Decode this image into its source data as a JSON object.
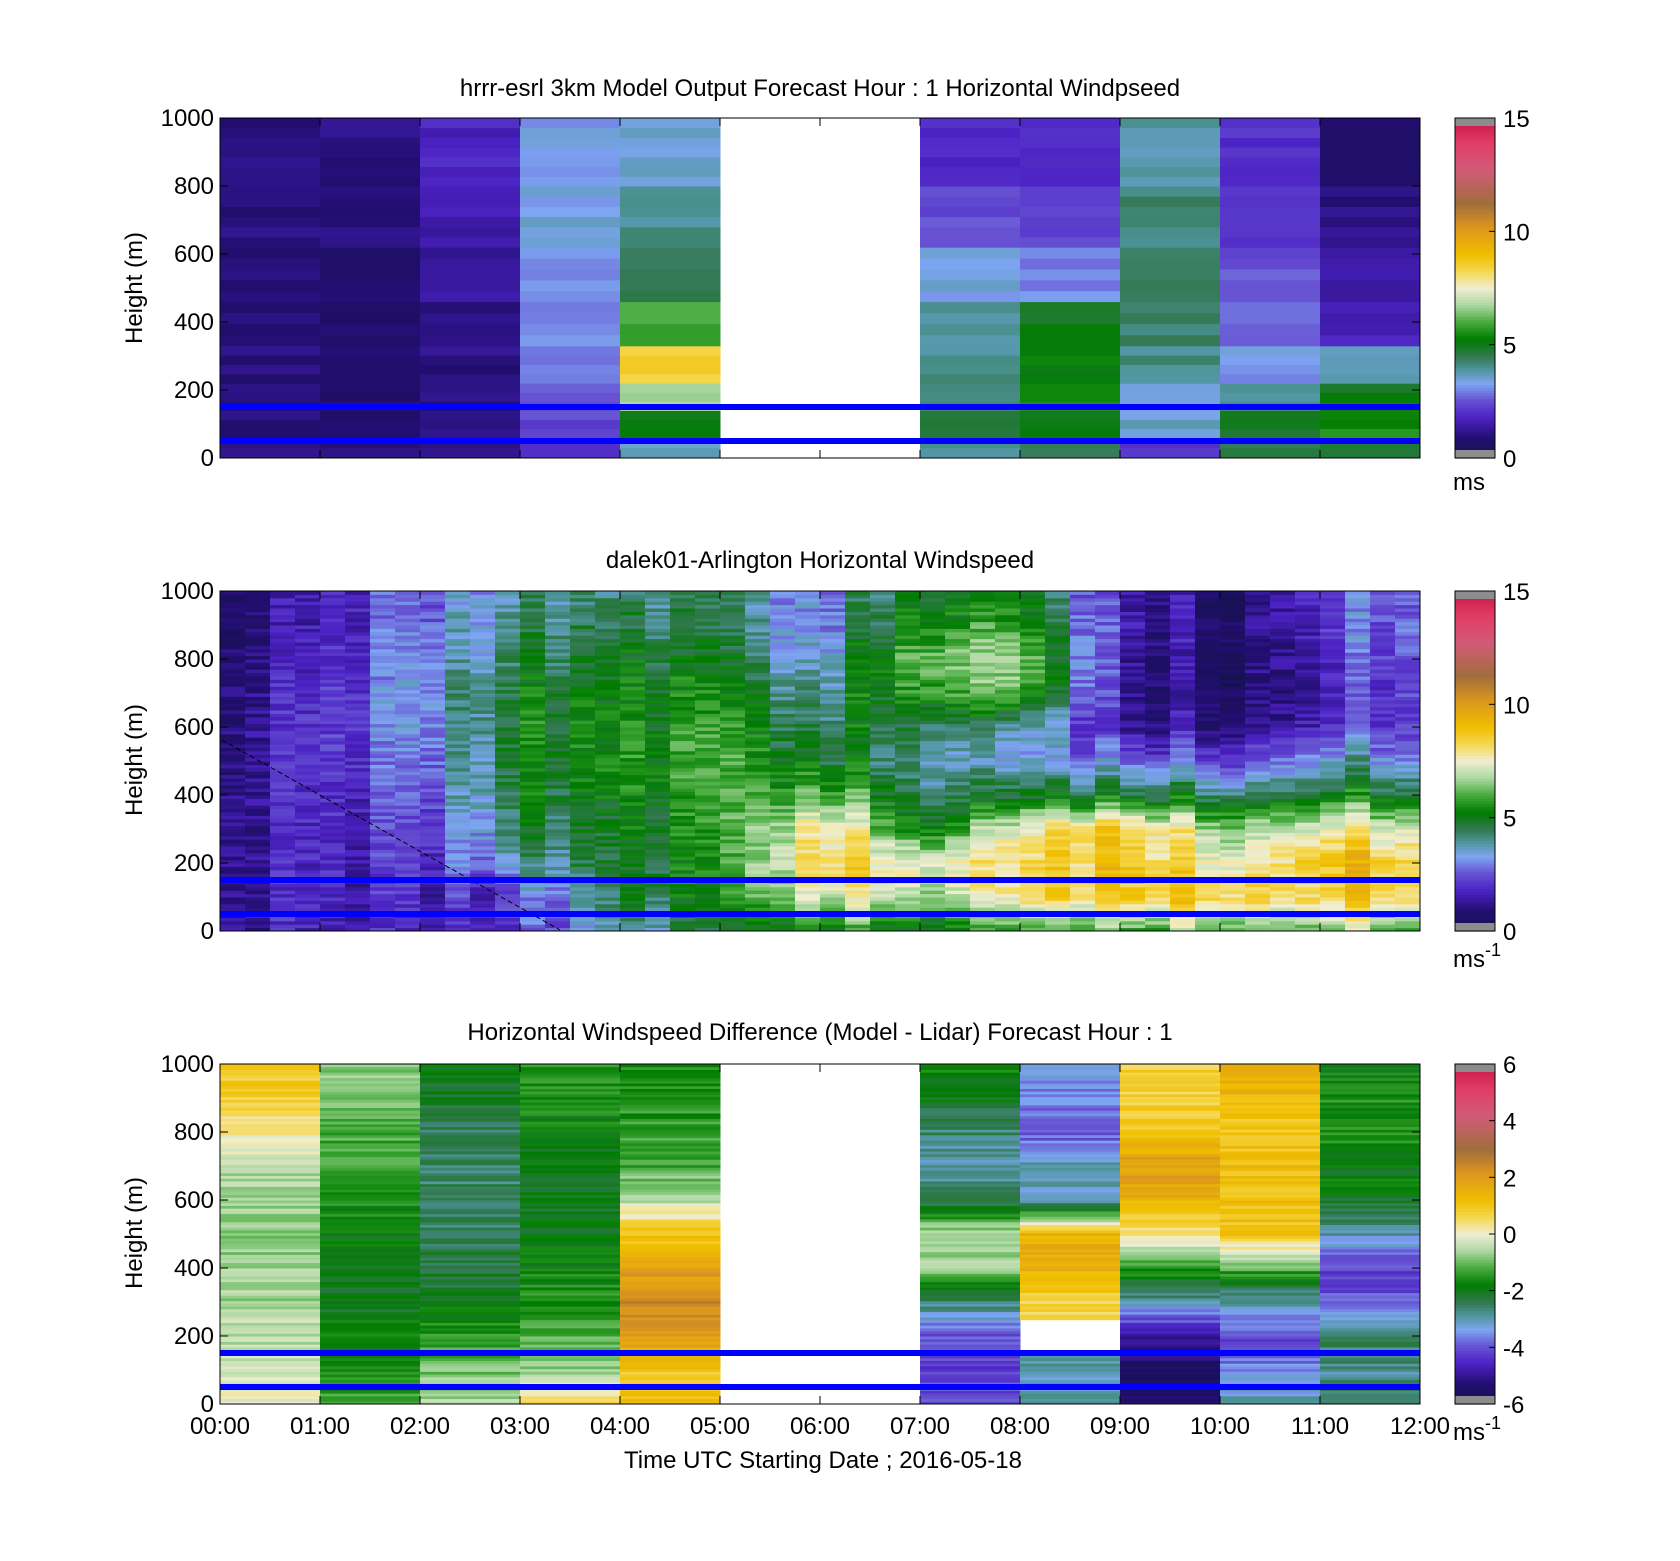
{
  "chart_data": [
    {
      "type": "heatmap",
      "title": "hrrr-esrl 3km Model Output   Forecast Hour : 1 Horizontal Windpseed",
      "ylabel": "Height (m)",
      "xlabel": "",
      "ylim": [
        0,
        1000
      ],
      "yticks": [
        "0",
        "200",
        "400",
        "600",
        "800",
        "1000"
      ],
      "xlim_hours": [
        0,
        12
      ],
      "colorbar": {
        "ticks": [
          "0",
          "5",
          "10",
          "15"
        ],
        "range": [
          0,
          15
        ],
        "unit": "ms",
        "unit_sup": ""
      },
      "heights": [
        0,
        60,
        140,
        220,
        330,
        460,
        620,
        800,
        1000
      ],
      "columns": [
        {
          "t0": 0,
          "t1": 1,
          "values": [
            1.1,
            1.0,
            1.0,
            1.0,
            1.0,
            1.0,
            1.0,
            1.0
          ]
        },
        {
          "t0": 1,
          "t1": 2,
          "values": [
            0.9,
            0.8,
            0.8,
            0.8,
            0.8,
            0.9,
            1.0,
            1.1
          ]
        },
        {
          "t0": 2,
          "t1": 3,
          "values": [
            1.1,
            1.0,
            1.0,
            1.1,
            1.2,
            1.3,
            1.5,
            1.8
          ]
        },
        {
          "t0": 3,
          "t1": 4,
          "values": [
            2.0,
            2.4,
            2.6,
            2.8,
            3.0,
            3.2,
            3.4,
            3.3
          ]
        },
        {
          "t0": 4,
          "t1": 5,
          "values": [
            3.5,
            5.0,
            6.8,
            8.5,
            6.0,
            4.6,
            4.0,
            3.5
          ]
        },
        {
          "t0": 5,
          "t1": 7,
          "values": [
            null,
            null,
            null,
            null,
            null,
            null,
            null,
            null
          ]
        },
        {
          "t0": 7,
          "t1": 8,
          "values": [
            4.0,
            4.6,
            4.2,
            4.0,
            3.9,
            3.4,
            2.4,
            1.8
          ]
        },
        {
          "t0": 8,
          "t1": 9,
          "values": [
            4.6,
            5.0,
            5.4,
            5.2,
            5.0,
            3.0,
            2.4,
            1.9
          ]
        },
        {
          "t0": 9,
          "t1": 10,
          "values": [
            2.2,
            3.6,
            3.3,
            4.1,
            4.3,
            4.4,
            4.2,
            3.8
          ]
        },
        {
          "t0": 10,
          "t1": 11,
          "values": [
            4.6,
            4.8,
            3.9,
            3.2,
            2.8,
            2.5,
            2.2,
            2.0
          ]
        },
        {
          "t0": 11,
          "t1": 12,
          "values": [
            5.0,
            5.5,
            5.1,
            3.8,
            1.7,
            1.4,
            1.1,
            0.8
          ]
        }
      ],
      "reference_lines_m": [
        50,
        150
      ]
    },
    {
      "type": "heatmap",
      "title": "dalek01-Arlington  Horizontal Windspeed",
      "ylabel": "Height (m)",
      "xlabel": "",
      "ylim": [
        0,
        1000
      ],
      "yticks": [
        "0",
        "200",
        "400",
        "600",
        "800",
        "1000"
      ],
      "xlim_hours": [
        0,
        12
      ],
      "colorbar": {
        "ticks": [
          "0",
          "5",
          "10",
          "15"
        ],
        "range": [
          0,
          15
        ],
        "unit": "ms",
        "unit_sup": "-1"
      },
      "data_end_hour": 11.85,
      "column_width_hours": 0.25,
      "profile_anchor_heights": [
        0,
        100,
        200,
        300,
        400,
        500,
        600,
        700,
        800,
        900,
        1000
      ],
      "profiles": [
        {
          "t": 0.0,
          "values": [
            1.4,
            1.3,
            1.3,
            1.2,
            1.2,
            1.1,
            1.1,
            1.0,
            0.8,
            0.7,
            0.6
          ]
        },
        {
          "t": 1.0,
          "values": [
            1.6,
            1.7,
            1.8,
            1.8,
            1.8,
            1.9,
            2.0,
            1.9,
            1.7,
            1.6,
            1.5
          ]
        },
        {
          "t": 2.0,
          "values": [
            1.8,
            2.0,
            2.1,
            2.3,
            2.7,
            3.0,
            3.3,
            3.4,
            3.2,
            3.0,
            2.8
          ]
        },
        {
          "t": 3.0,
          "values": [
            2.2,
            2.4,
            3.8,
            4.5,
            4.9,
            5.1,
            5.2,
            4.9,
            4.6,
            4.3,
            4.0
          ]
        },
        {
          "t": 4.0,
          "values": [
            3.8,
            4.6,
            5.0,
            5.0,
            5.3,
            5.5,
            5.4,
            5.3,
            5.0,
            4.6,
            4.3
          ]
        },
        {
          "t": 5.0,
          "values": [
            4.3,
            5.0,
            5.1,
            5.3,
            5.4,
            5.6,
            5.4,
            5.1,
            4.6,
            4.2,
            4.0
          ]
        },
        {
          "t": 6.0,
          "values": [
            5.5,
            7.5,
            8.8,
            8.2,
            6.5,
            5.2,
            4.6,
            4.0,
            3.5,
            3.1,
            3.0
          ]
        },
        {
          "t": 7.0,
          "values": [
            5.0,
            7.0,
            7.8,
            5.5,
            4.7,
            4.2,
            5.0,
            6.2,
            6.8,
            6.0,
            5.5
          ]
        },
        {
          "t": 8.0,
          "values": [
            5.5,
            7.6,
            7.8,
            7.2,
            4.6,
            3.0,
            3.6,
            6.0,
            6.5,
            5.4,
            4.8
          ]
        },
        {
          "t": 9.0,
          "values": [
            6.0,
            8.8,
            9.0,
            8.8,
            5.0,
            3.0,
            1.6,
            1.5,
            1.7,
            1.9,
            1.8
          ]
        },
        {
          "t": 10.0,
          "values": [
            6.4,
            8.6,
            7.6,
            6.8,
            4.6,
            2.5,
            1.2,
            0.8,
            0.8,
            0.9,
            0.8
          ]
        },
        {
          "t": 11.0,
          "values": [
            6.8,
            8.8,
            9.2,
            8.0,
            5.6,
            3.8,
            2.3,
            2.0,
            2.2,
            2.4,
            2.6
          ]
        },
        {
          "t": 11.85,
          "values": [
            6.4,
            8.6,
            9.0,
            7.6,
            5.2,
            3.6,
            2.6,
            2.8,
            3.0,
            3.2,
            3.0
          ]
        }
      ],
      "reference_lines_m": [
        50,
        150
      ]
    },
    {
      "type": "heatmap",
      "title": "Horizontal Windspeed Difference (Model - Lidar) Forecast Hour : 1",
      "ylabel": "Height (m)",
      "xlabel": "Time UTC  Starting Date ; 2016-05-18",
      "ylim": [
        0,
        1000
      ],
      "yticks": [
        "0",
        "200",
        "400",
        "600",
        "800",
        "1000"
      ],
      "xticks": [
        "00:00",
        "01:00",
        "02:00",
        "03:00",
        "04:00",
        "05:00",
        "06:00",
        "07:00",
        "08:00",
        "09:00",
        "10:00",
        "11:00",
        "12:00"
      ],
      "xlim_hours": [
        0,
        12
      ],
      "colorbar": {
        "ticks": [
          "-6",
          "-4",
          "-2",
          "0",
          "2",
          "4",
          "6"
        ],
        "range": [
          -6,
          6
        ],
        "unit": "ms",
        "unit_sup": "-1"
      },
      "profile_anchor_heights": [
        0,
        100,
        200,
        300,
        400,
        500,
        600,
        700,
        800,
        900,
        1000
      ],
      "columns": [
        {
          "t0": 0,
          "t1": 1,
          "values": [
            0.0,
            -0.2,
            -0.5,
            -0.6,
            -0.7,
            -0.8,
            -0.7,
            -0.5,
            0.3,
            0.8,
            1.0
          ]
        },
        {
          "t0": 1,
          "t1": 2,
          "values": [
            -1.3,
            -1.6,
            -1.8,
            -2.0,
            -2.0,
            -1.8,
            -1.6,
            -1.4,
            -1.2,
            -1.0,
            -0.8
          ]
        },
        {
          "t0": 2,
          "t1": 3,
          "values": [
            -0.6,
            -0.9,
            -1.5,
            -2.0,
            -2.3,
            -2.4,
            -2.6,
            -2.5,
            -2.4,
            -2.2,
            -2.0
          ]
        },
        {
          "t0": 3,
          "t1": 4,
          "values": [
            0.6,
            -0.7,
            -1.2,
            -1.5,
            -1.8,
            -2.0,
            -2.0,
            -2.0,
            -1.8,
            -1.6,
            -1.5
          ]
        },
        {
          "t0": 4,
          "t1": 5,
          "values": [
            1.0,
            1.0,
            2.0,
            2.4,
            1.8,
            1.0,
            -0.4,
            -1.2,
            -1.4,
            -1.5,
            -1.5
          ]
        },
        {
          "t0": 5,
          "t1": 7,
          "values": [
            null,
            null,
            null,
            null,
            null,
            null,
            null,
            null,
            null,
            null,
            null
          ]
        },
        {
          "t0": 7,
          "t1": 8,
          "values": [
            -4.0,
            -4.2,
            -4.0,
            -2.6,
            -0.8,
            -0.4,
            -2.4,
            -3.0,
            -2.6,
            -2.0,
            -1.6
          ]
        },
        {
          "t0": 8,
          "t1": 9,
          "values": [
            -3.0,
            -3.0,
            null,
            0.6,
            1.5,
            1.5,
            -3.2,
            -3.0,
            -4.0,
            -3.6,
            -3.2
          ]
        },
        {
          "t0": 9,
          "t1": 10,
          "values": [
            -5.5,
            -5.5,
            -5.0,
            -3.0,
            -1.5,
            0.3,
            1.5,
            2.0,
            1.0,
            0.8,
            0.8
          ]
        },
        {
          "t0": 10,
          "t1": 11,
          "values": [
            -3.0,
            -3.5,
            -4.2,
            -3.0,
            -1.2,
            1.0,
            1.2,
            1.2,
            1.0,
            1.3,
            1.8
          ]
        },
        {
          "t0": 11,
          "t1": 12,
          "values": [
            -2.5,
            -2.8,
            -2.5,
            -4.0,
            -4.2,
            -3.0,
            -2.0,
            -1.8,
            -1.6,
            -1.6,
            -1.8
          ]
        }
      ],
      "reference_lines_m": [
        50,
        150
      ]
    }
  ]
}
